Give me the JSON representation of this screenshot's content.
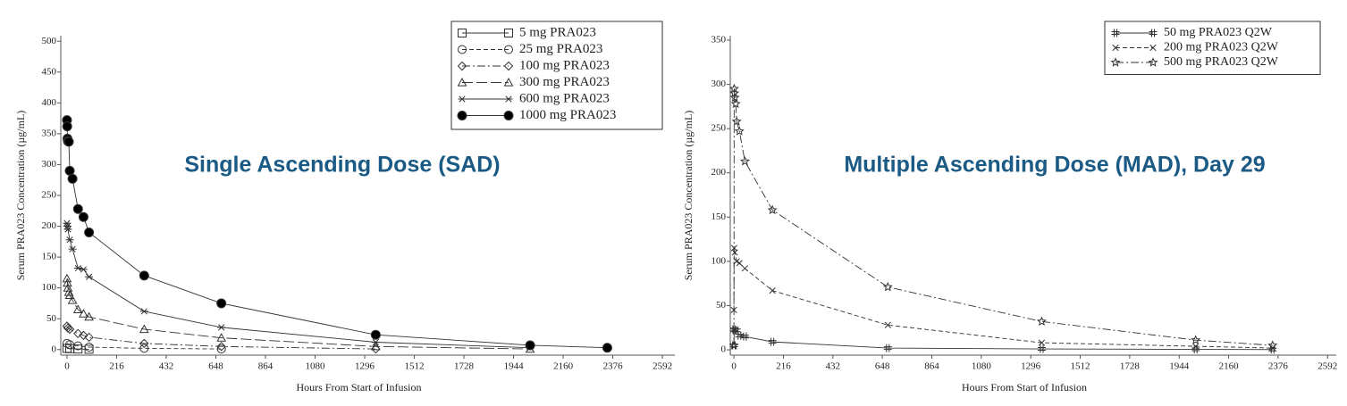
{
  "chart_data": [
    {
      "type": "line",
      "annotation": "Single Ascending Dose (SAD)",
      "xlabel": "Hours From Start of Infusion",
      "ylabel": "Serum PRA023 Concentration (µg/mL)",
      "xlim": [
        -27,
        2646
      ],
      "ylim": [
        -9,
        509
      ],
      "xticks": [
        0,
        216,
        432,
        648,
        864,
        1080,
        1296,
        1512,
        1728,
        1944,
        2160,
        2376,
        2592
      ],
      "yticks": [
        0,
        50,
        100,
        150,
        200,
        250,
        300,
        350,
        400,
        450,
        500
      ],
      "legend": "upper right",
      "series": [
        {
          "name": "5 mg PRA023",
          "color": "#333333",
          "marker": "square",
          "line_style": "solid",
          "x": [
            0,
            12,
            48,
            96
          ],
          "values": [
            2,
            1.5,
            1,
            0.5
          ]
        },
        {
          "name": "25 mg PRA023",
          "color": "#333333",
          "marker": "circle",
          "line_style": "dashed",
          "x": [
            0,
            12,
            48,
            96,
            336,
            672
          ],
          "values": [
            10,
            8,
            6,
            4,
            2,
            1
          ]
        },
        {
          "name": "100 mg PRA023",
          "color": "#333333",
          "marker": "diamond",
          "line_style": "dashdot",
          "x": [
            0,
            4,
            12,
            48,
            72,
            96,
            336,
            672,
            1344
          ],
          "values": [
            38,
            35,
            33,
            26,
            23,
            20,
            10,
            5,
            1
          ]
        },
        {
          "name": "300 mg PRA023",
          "color": "#333333",
          "marker": "triangle",
          "line_style": "longdash",
          "x": [
            0,
            2,
            4,
            8,
            12,
            24,
            48,
            72,
            96,
            336,
            672,
            1344,
            2016
          ],
          "values": [
            115,
            108,
            100,
            93,
            88,
            80,
            65,
            58,
            53,
            33,
            19,
            5,
            1
          ]
        },
        {
          "name": "600 mg PRA023",
          "color": "#333333",
          "marker": "asterisk",
          "line_style": "solid",
          "x": [
            0,
            2,
            4,
            12,
            24,
            48,
            72,
            96,
            336,
            672,
            1344,
            2016
          ],
          "values": [
            205,
            200,
            195,
            178,
            163,
            132,
            130,
            118,
            62,
            36,
            12,
            3
          ]
        },
        {
          "name": "1000 mg PRA023",
          "color": "#333333",
          "marker": "filled-circle",
          "line_style": "solid",
          "x": [
            0,
            1,
            2,
            4,
            8,
            12,
            24,
            48,
            72,
            96,
            336,
            672,
            1344,
            2016,
            2352
          ],
          "values": [
            372,
            362,
            342,
            338,
            337,
            290,
            277,
            228,
            215,
            190,
            120,
            75,
            24,
            7,
            3
          ]
        }
      ]
    },
    {
      "type": "line",
      "annotation": "Multiple Ascending Dose (MAD), Day 29",
      "xlabel": "Hours From Start of Infusion",
      "ylabel": "Serum PRA023 Concentration (µg/mL)",
      "xlim": [
        -16,
        2630
      ],
      "ylim": [
        -6,
        355
      ],
      "xticks": [
        0,
        216,
        432,
        648,
        864,
        1080,
        1296,
        1512,
        1728,
        1944,
        2160,
        2376,
        2592
      ],
      "yticks": [
        0,
        50,
        100,
        150,
        200,
        250,
        300,
        350
      ],
      "legend": "upper right",
      "series": [
        {
          "name": "50 mg PRA023 Q2W",
          "color": "#333333",
          "marker": "hash",
          "line_style": "solid",
          "x": [
            0,
            1,
            4,
            12,
            24,
            48,
            168,
            672,
            1344,
            2016,
            2352
          ],
          "values": [
            5,
            23,
            22,
            22,
            16,
            15,
            9,
            2,
            1,
            0.5,
            0.3
          ]
        },
        {
          "name": "200 mg PRA023 Q2W",
          "color": "#333333",
          "marker": "x",
          "line_style": "dashed",
          "x": [
            0,
            1,
            4,
            12,
            24,
            48,
            168,
            672,
            1344,
            2016,
            2352
          ],
          "values": [
            45,
            115,
            110,
            100,
            98,
            92,
            67,
            28,
            8,
            4,
            2
          ]
        },
        {
          "name": "500 mg PRA023 Q2W",
          "color": "#333333",
          "marker": "star",
          "line_style": "dashdot",
          "x": [
            0,
            1,
            2,
            4,
            8,
            12,
            24,
            48,
            168,
            672,
            1344,
            2016,
            2352
          ],
          "values": [
            5,
            295,
            290,
            285,
            278,
            258,
            247,
            213,
            158,
            71,
            32,
            11,
            5
          ]
        }
      ]
    }
  ]
}
